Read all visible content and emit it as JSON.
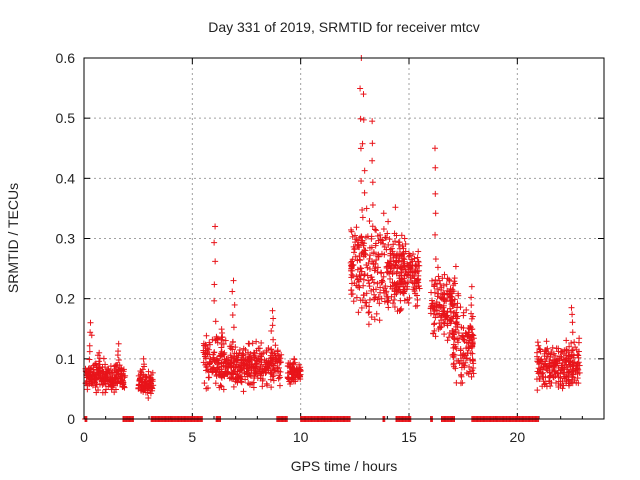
{
  "chart_data": {
    "type": "scatter",
    "title": "Day 331 of 2019, SRMTID for receiver mtcv",
    "xlabel": "GPS time / hours",
    "ylabel": "SRMTID / TECUs",
    "xlim": [
      0,
      24
    ],
    "ylim": [
      0,
      0.6
    ],
    "x_ticks": [
      "0",
      "5",
      "10",
      "15",
      "20"
    ],
    "y_ticks": [
      "0",
      "0.1",
      "0.2",
      "0.3",
      "0.4",
      "0.5",
      "0.6"
    ],
    "grid": true,
    "marker": "+",
    "color": "#e8141a",
    "clusters": [
      {
        "x": [
          0.05,
          1.9
        ],
        "y_center": 0.07,
        "spread": 0.02,
        "peak_x": [
          0.3,
          0.7,
          1.6
        ],
        "peak_y": [
          0.16,
          0.11,
          0.125
        ]
      },
      {
        "x": [
          2.5,
          3.2
        ],
        "y_center": 0.06,
        "spread": 0.02,
        "peak_x": [
          2.75
        ],
        "peak_y": [
          0.1
        ]
      },
      {
        "x": [
          5.5,
          6.4
        ],
        "y_center": 0.1,
        "spread": 0.04,
        "peak_x": [
          6.05
        ],
        "peak_y": [
          0.32
        ]
      },
      {
        "x": [
          6.4,
          9.1
        ],
        "y_center": 0.09,
        "spread": 0.03,
        "peak_x": [
          6.9,
          8.7
        ],
        "peak_y": [
          0.23,
          0.18
        ]
      },
      {
        "x": [
          9.4,
          10.0
        ],
        "y_center": 0.075,
        "spread": 0.015,
        "peak_x": [
          9.7
        ],
        "peak_y": [
          0.1
        ]
      },
      {
        "x": [
          12.3,
          14.7
        ],
        "y_center": 0.25,
        "spread": 0.07,
        "peak_x": [
          12.8,
          12.9,
          13.3
        ],
        "peak_y": [
          0.6,
          0.54,
          0.495
        ]
      },
      {
        "x": [
          14.6,
          15.5
        ],
        "y_center": 0.24,
        "spread": 0.04,
        "peak_x": [
          14.8
        ],
        "peak_y": [
          0.3
        ]
      },
      {
        "x": [
          16.0,
          17.3
        ],
        "y_center": 0.19,
        "spread": 0.05,
        "peak_x": [
          16.2
        ],
        "peak_y": [
          0.45
        ]
      },
      {
        "x": [
          17.0,
          18.0
        ],
        "y_center": 0.12,
        "spread": 0.05,
        "peak_x": [
          17.9
        ],
        "peak_y": [
          0.22
        ]
      },
      {
        "x": [
          20.9,
          22.9
        ],
        "y_center": 0.09,
        "spread": 0.035,
        "peak_x": [
          22.5
        ],
        "peak_y": [
          0.185
        ]
      }
    ],
    "zero_segments": [
      [
        0.05,
        0.15
      ],
      [
        1.8,
        2.3
      ],
      [
        3.1,
        5.5
      ],
      [
        6.1,
        6.3
      ],
      [
        8.9,
        9.4
      ],
      [
        10.0,
        12.3
      ],
      [
        13.8,
        13.9
      ],
      [
        14.4,
        15.1
      ],
      [
        16.0,
        16.1
      ],
      [
        16.5,
        17.1
      ],
      [
        17.9,
        21.0
      ]
    ]
  }
}
